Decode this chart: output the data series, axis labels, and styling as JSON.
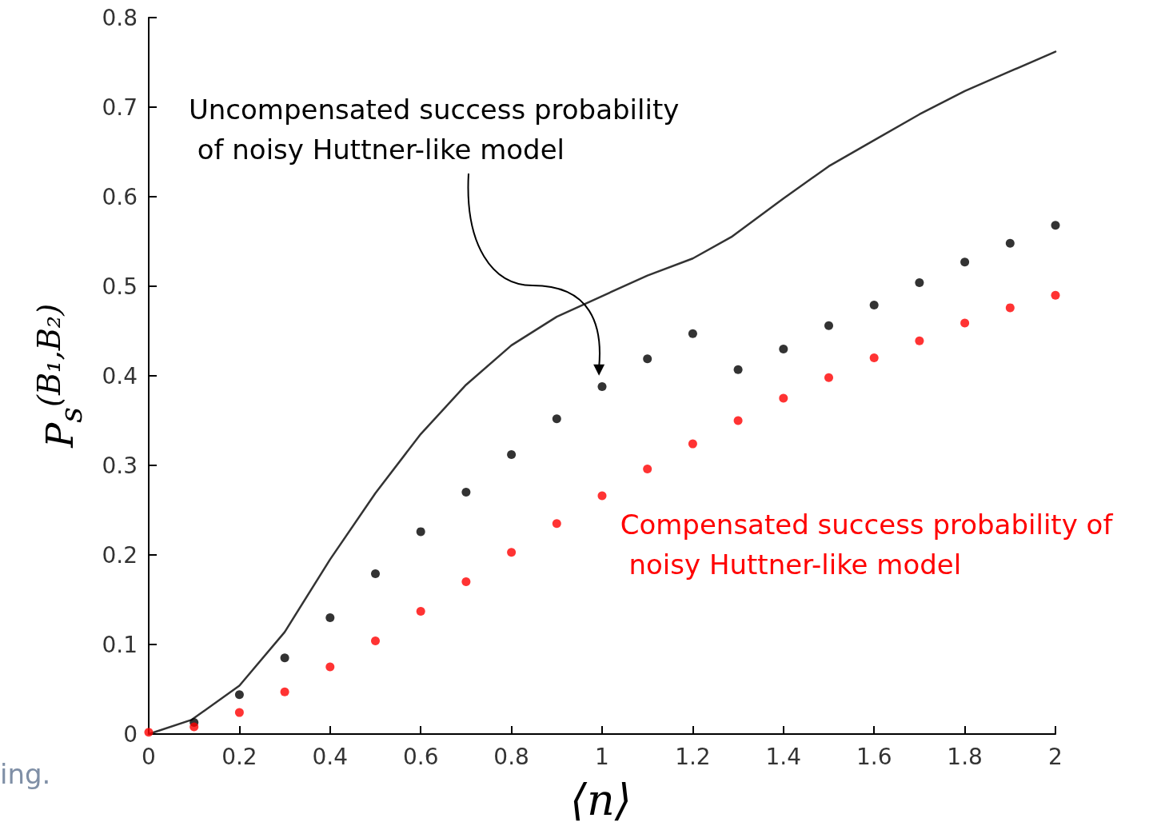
{
  "chart_data": {
    "type": "scatter",
    "xlabel": "⟨n⟩",
    "ylabel": "P$_{s}$$^{(B₁,B₂)}$",
    "x": [
      0,
      0.1,
      0.2,
      0.3,
      0.4,
      0.5,
      0.6,
      0.7,
      0.8,
      0.9,
      1.0,
      1.1,
      1.2,
      1.3,
      1.4,
      1.5,
      1.6,
      1.7,
      1.8,
      1.9,
      2.0
    ],
    "series": [
      {
        "type": "line",
        "marker": "none",
        "color": "#333333",
        "x": [
          0,
          0.095,
          0.2,
          0.3,
          0.4,
          0.5,
          0.6,
          0.7,
          0.8,
          0.9,
          1.0,
          1.1,
          1.2,
          1.285,
          1.4,
          1.5,
          1.6,
          1.7,
          1.8,
          1.9,
          2.0
        ],
        "values": [
          0,
          0.016,
          0.054,
          0.114,
          0.195,
          0.269,
          0.335,
          0.39,
          0.434,
          0.466,
          0.489,
          0.512,
          0.531,
          0.555,
          0.598,
          0.634,
          0.663,
          0.692,
          0.718,
          0.74,
          0.762
        ]
      },
      {
        "name": "Uncompensated success probability of noisy Huttner-like model",
        "color": "#000000",
        "values": [
          null,
          0.013,
          0.044,
          0.085,
          0.13,
          0.179,
          0.226,
          0.27,
          0.312,
          0.352,
          0.388,
          0.419,
          0.447,
          0.407,
          0.43,
          0.456,
          0.479,
          0.504,
          0.527,
          0.548,
          0.568
        ]
      },
      {
        "name": "Compensated success probability of noisy Huttner-like model",
        "color": "#ff0000",
        "values": [
          0.002,
          0.008,
          0.024,
          0.047,
          0.075,
          0.104,
          0.137,
          0.17,
          0.203,
          0.235,
          0.266,
          0.296,
          0.324,
          0.35,
          0.375,
          0.398,
          0.42,
          0.439,
          0.459,
          0.476,
          0.49
        ]
      }
    ],
    "xlim": [
      0,
      2
    ],
    "xticks": [
      0,
      0.2,
      0.4,
      0.6,
      0.8,
      1,
      1.2,
      1.4,
      1.6,
      1.8,
      2
    ],
    "ylim": [
      0,
      0.8
    ],
    "yticks": [
      0,
      0.1,
      0.2,
      0.3,
      0.4,
      0.5,
      0.6,
      0.7,
      0.8
    ],
    "marker": "circle",
    "grid": false,
    "legend": false,
    "annotations": [
      "ing."
    ]
  }
}
